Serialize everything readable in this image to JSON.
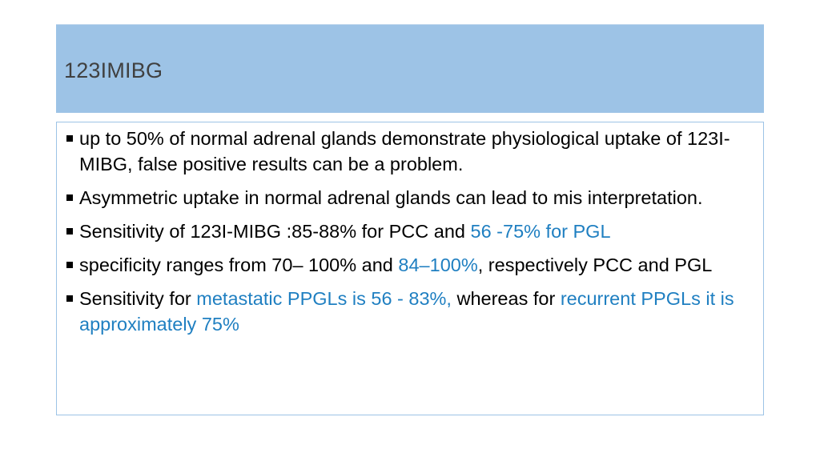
{
  "slide": {
    "title": "123IMIBG",
    "accent_color": "#9dc3e6",
    "highlight_color": "#1f7fc1"
  },
  "bullets": [
    {
      "marker": "square-bullet-icon",
      "t1": "up to 50% of normal adrenal glands demonstrate physiological uptake of 123I-MIBG,  false positive results can be a problem."
    },
    {
      "marker": "square-bullet-icon",
      "t1": "Asymmetric uptake in normal adrenal glands can lead to mis interpretation."
    },
    {
      "marker": "square-bullet-icon",
      "t1": "Sensitivity of 123I-MIBG :85-88% for PCC and ",
      "h1": "56 -75% for PGL"
    },
    {
      "marker": "square-bullet-icon",
      "t1": " specificity ranges from 70– 100% and ",
      "h1": "84–100%",
      "t2": ", respectively PCC and PGL"
    },
    {
      "marker": "square-bullet-icon",
      "t1": "Sensitivity for ",
      "h1": "metastatic PPGLs is  56 - 83%,",
      "t2": " whereas for ",
      "h2": "recurrent PPGLs it is approximately 75%"
    }
  ]
}
